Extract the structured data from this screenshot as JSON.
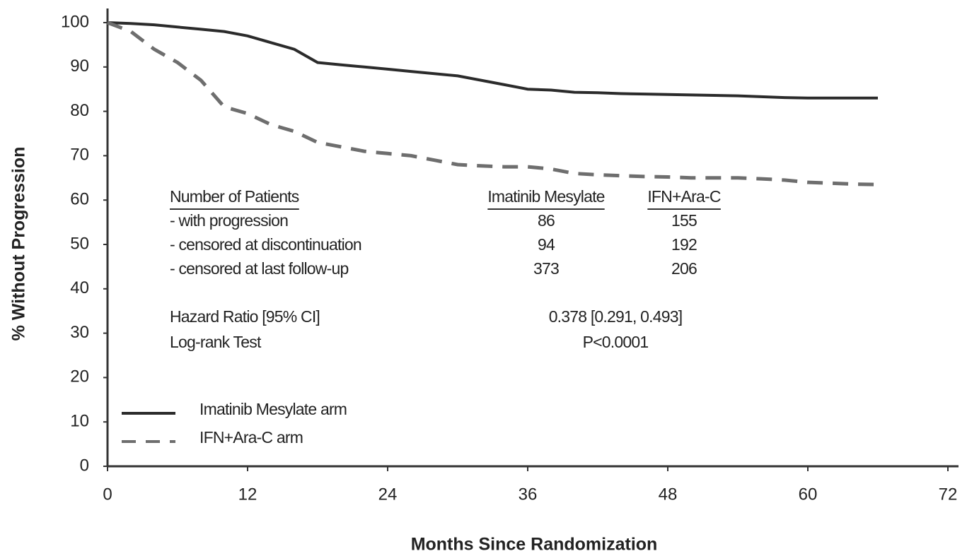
{
  "chart_data": {
    "type": "line",
    "x_label": "Months Since Randomization",
    "y_label": "% Without Progression",
    "x": [
      0,
      2,
      4,
      6,
      8,
      10,
      12,
      14,
      16,
      18,
      20,
      22,
      24,
      26,
      28,
      30,
      32,
      34,
      36,
      38,
      40,
      42,
      44,
      46,
      48,
      50,
      52,
      54,
      56,
      58,
      60,
      62,
      64,
      66
    ],
    "series": [
      {
        "name": "Imatinib Mesylate arm",
        "color": "#2b2b2b",
        "style": "solid",
        "values": [
          100,
          99.8,
          99.5,
          99,
          98.5,
          98,
          97,
          95.5,
          94,
          91,
          90.5,
          90,
          89.5,
          89,
          88.5,
          88,
          87,
          86,
          85,
          84.8,
          84.3,
          84.2,
          84,
          83.9,
          83.8,
          83.7,
          83.6,
          83.5,
          83.3,
          83.1,
          83,
          83,
          83,
          83
        ]
      },
      {
        "name": "IFN+Ara-C arm",
        "color": "#6e6e6e",
        "style": "dashed",
        "values": [
          100,
          98,
          94,
          91,
          87,
          81,
          79.5,
          77,
          75.5,
          73,
          72,
          71,
          70.5,
          70,
          69,
          68,
          67.7,
          67.5,
          67.5,
          67,
          66,
          65.7,
          65.5,
          65.3,
          65.2,
          65,
          65,
          65,
          64.8,
          64.5,
          64,
          63.8,
          63.6,
          63.5
        ]
      }
    ],
    "xlim": [
      0,
      72
    ],
    "xticks": [
      0,
      12,
      24,
      36,
      48,
      60,
      72
    ],
    "ylim": [
      0,
      100
    ],
    "yticks": [
      0,
      10,
      20,
      30,
      40,
      50,
      60,
      70,
      80,
      90,
      100
    ],
    "grid": false,
    "legend": "lower left",
    "annotations": {
      "table_header": [
        "Number of Patients",
        "Imatinib Mesylate",
        "IFN+Ara-C"
      ],
      "table_rows": [
        [
          "- with progression",
          86,
          155
        ],
        [
          "- censored at discontinuation",
          94,
          192
        ],
        [
          "- censored at last follow-up",
          373,
          206
        ]
      ],
      "stats": [
        [
          "Hazard Ratio [95% CI]",
          "0.378 [0.291, 0.493]"
        ],
        [
          "Log-rank Test",
          "P<0.0001"
        ]
      ]
    }
  }
}
